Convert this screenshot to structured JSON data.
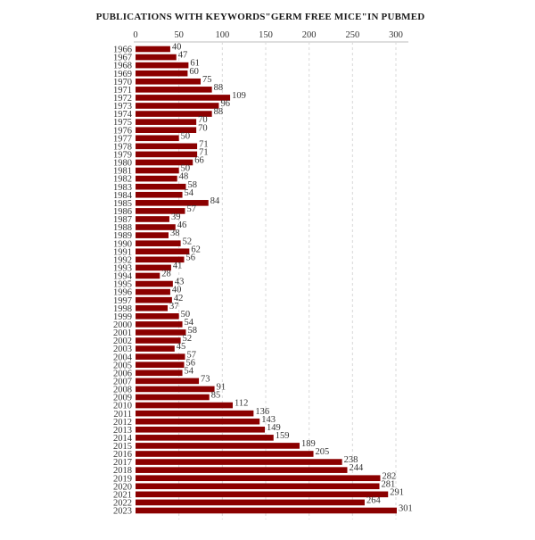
{
  "chart_data": {
    "type": "bar",
    "orientation": "horizontal",
    "title": "PUBLICATIONS WITH KEYWORDS\"GERM FREE MICE\"IN PUBMED",
    "xlabel": "",
    "ylabel": "",
    "xlim": [
      0,
      300
    ],
    "x_ticks": [
      0,
      50,
      100,
      150,
      200,
      250,
      300
    ],
    "grid": true,
    "x_axis_position": "top",
    "bar_color": "#8b0000",
    "categories": [
      "1966",
      "1967",
      "1968",
      "1969",
      "1970",
      "1971",
      "1972",
      "1973",
      "1974",
      "1975",
      "1976",
      "1977",
      "1978",
      "1979",
      "1980",
      "1981",
      "1982",
      "1983",
      "1984",
      "1985",
      "1986",
      "1987",
      "1988",
      "1989",
      "1990",
      "1991",
      "1992",
      "1993",
      "1994",
      "1995",
      "1996",
      "1997",
      "1998",
      "1999",
      "2000",
      "2001",
      "2002",
      "2003",
      "2004",
      "2005",
      "2006",
      "2007",
      "2008",
      "2009",
      "2010",
      "2011",
      "2012",
      "2013",
      "2014",
      "2015",
      "2016",
      "2017",
      "2018",
      "2019",
      "2020",
      "2021",
      "2022",
      "2023"
    ],
    "values": [
      40,
      47,
      61,
      60,
      75,
      88,
      109,
      96,
      88,
      70,
      70,
      50,
      71,
      71,
      66,
      50,
      48,
      58,
      54,
      84,
      57,
      39,
      46,
      38,
      52,
      62,
      56,
      41,
      28,
      43,
      40,
      42,
      37,
      50,
      54,
      58,
      52,
      45,
      57,
      56,
      54,
      73,
      91,
      85,
      112,
      136,
      143,
      149,
      159,
      189,
      205,
      238,
      244,
      282,
      281,
      291,
      264,
      301
    ]
  }
}
